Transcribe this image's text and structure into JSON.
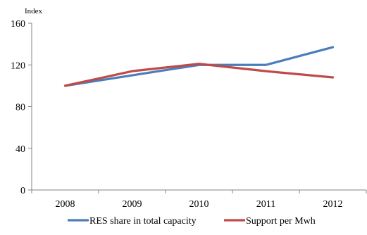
{
  "chart_data": {
    "type": "line",
    "title": "",
    "xlabel": "",
    "ylabel": "Index",
    "categories": [
      "2008",
      "2009",
      "2010",
      "2011",
      "2012"
    ],
    "ylim": [
      0,
      160
    ],
    "yticks": [
      0,
      40,
      80,
      120,
      160
    ],
    "grid": false,
    "legend_position": "bottom",
    "series": [
      {
        "name": "RES share in total capacity",
        "color": "#4a7ebb",
        "values": [
          100,
          110,
          120,
          120,
          137
        ]
      },
      {
        "name": "Support per Mwh",
        "color": "#be4b48",
        "values": [
          100,
          114,
          121,
          114,
          108
        ]
      }
    ]
  }
}
